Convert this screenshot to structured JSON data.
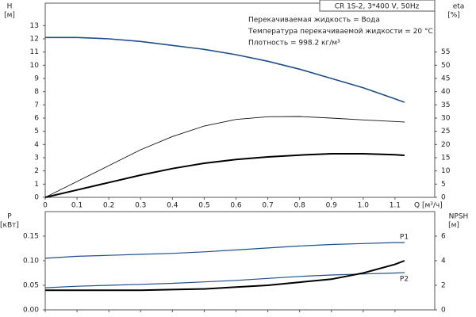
{
  "chart_data": [
    {
      "type": "line",
      "title": "CR 1S-2, 3*400 V, 50Hz",
      "annotations": [
        "Перекачиваемая жидкость = Вода",
        "Температура перекачиваемой жидкости = 20 °C",
        "Плотность = 998.2 кг/м³"
      ],
      "ylabel": "H",
      "yunit": "[м]",
      "y2label": "eta",
      "y2unit": "[%]",
      "xlabel": "Q [м³/ч]",
      "x": [
        0,
        0.1,
        0.2,
        0.3,
        0.4,
        0.5,
        0.6,
        0.7,
        0.8,
        0.9,
        1.0,
        1.1,
        1.13
      ],
      "xlim": [
        0,
        1.225
      ],
      "xticks": [
        0,
        0.1,
        0.2,
        0.3,
        0.4,
        0.5,
        0.6,
        0.7,
        0.8,
        0.9,
        {
          "value": 1.0,
          "label": "1.0"
        },
        1.1
      ],
      "ylim": [
        0,
        14.7
      ],
      "yticks": [
        0,
        1,
        2,
        3,
        4,
        5,
        6,
        7,
        8,
        9,
        10,
        11,
        12,
        13
      ],
      "y2lim": [
        0,
        73.5
      ],
      "y2ticks": [
        0,
        5,
        10,
        15,
        20,
        25,
        30,
        35,
        40,
        45,
        50,
        55
      ],
      "series": [
        {
          "color": "#1f4e8c",
          "values": [
            12.1,
            12.1,
            12.0,
            11.8,
            11.5,
            11.2,
            10.8,
            10.3,
            9.7,
            9.0,
            8.3,
            7.45,
            7.2
          ]
        },
        {
          "color": "#111111",
          "axis": "y2",
          "values": [
            0,
            6,
            12,
            18,
            23,
            27,
            29.5,
            30.5,
            30.6,
            30,
            29.3,
            28.7,
            28.5
          ]
        },
        {
          "color": "#000000",
          "axis": "y2",
          "values": [
            0,
            2.8,
            5.6,
            8.4,
            10.9,
            12.9,
            14.3,
            15.3,
            16,
            16.5,
            16.5,
            16.1,
            15.9
          ]
        }
      ]
    },
    {
      "type": "line",
      "ylabel": "P",
      "yunit": "[кВт]",
      "y2label": "NPSH",
      "y2unit": "[м]",
      "x": [
        0,
        0.1,
        0.2,
        0.3,
        0.4,
        0.5,
        0.6,
        0.7,
        0.8,
        0.9,
        1.0,
        1.1,
        1.13
      ],
      "xlim": [
        0,
        1.225
      ],
      "xticks": [
        0,
        0.1,
        0.2,
        0.3,
        0.4,
        0.5,
        0.6,
        0.7,
        0.8,
        0.9,
        1.0,
        1.1
      ],
      "ylim": [
        0,
        0.2
      ],
      "yticks": [
        {
          "value": 0,
          "label": "0.00"
        },
        {
          "value": 0.05,
          "label": "0.05"
        },
        {
          "value": 0.1,
          "label": "0.10"
        },
        {
          "value": 0.15,
          "label": "0.15"
        }
      ],
      "y2lim": [
        0,
        8
      ],
      "y2ticks": [
        0,
        2,
        4,
        6
      ],
      "series": [
        {
          "name": "P1",
          "color": "#1f4e8c",
          "values": [
            0.105,
            0.109,
            0.111,
            0.113,
            0.115,
            0.118,
            0.122,
            0.126,
            0.13,
            0.133,
            0.135,
            0.137,
            0.137
          ]
        },
        {
          "name": "P2",
          "color": "#1f4e8c",
          "values": [
            0.045,
            0.048,
            0.05,
            0.052,
            0.054,
            0.057,
            0.06,
            0.064,
            0.068,
            0.071,
            0.073,
            0.075,
            0.076
          ]
        },
        {
          "color": "#000000",
          "axis": "y2",
          "values": [
            1.6,
            1.6,
            1.6,
            1.6,
            1.65,
            1.7,
            1.85,
            2.0,
            2.25,
            2.5,
            3.0,
            3.7,
            4.0
          ]
        }
      ]
    }
  ]
}
